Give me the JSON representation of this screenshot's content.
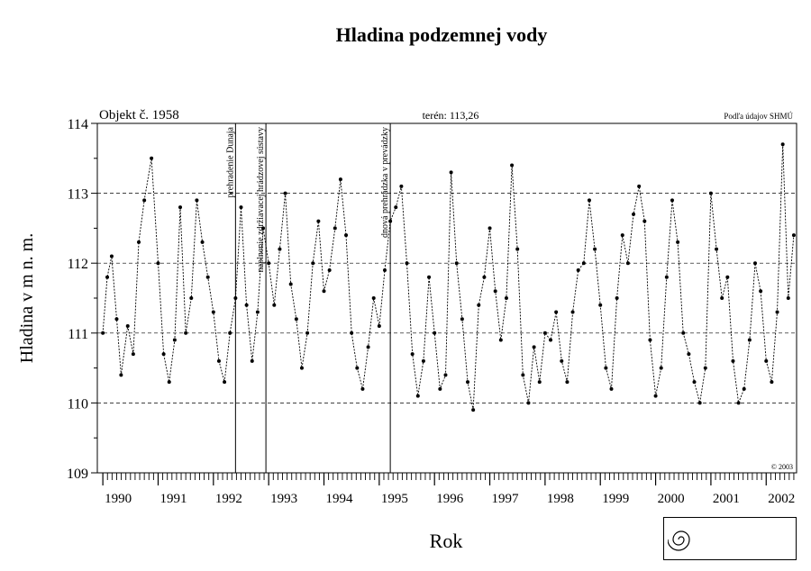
{
  "chart_data": {
    "type": "line",
    "title": "Hladina podzemnej vody",
    "xlabel": "Rok",
    "ylabel": "Hladina v m n. m.",
    "ylim": [
      109,
      114
    ],
    "xlim": [
      1989.9,
      2002.55
    ],
    "y_ticks": [
      109,
      110,
      111,
      112,
      113,
      114
    ],
    "x_tick_labels": [
      "1990",
      "1991",
      "1992",
      "1993",
      "1994",
      "1995",
      "1996",
      "1997",
      "1998",
      "1999",
      "2000",
      "2001",
      "2002"
    ],
    "grid": "dashed horizontal at each integer level",
    "header_left": "Objekt č. 1958",
    "header_center": "terén: 113,26",
    "header_right": "Podľa údajov SHMÚ",
    "copyright": "© 2003",
    "events": [
      {
        "x": 1992.4,
        "label": "prehradenie Dunaja"
      },
      {
        "x": 1992.95,
        "label": "naplnenie zdržiavacej hrádzovej sústavy"
      },
      {
        "x": 1995.2,
        "label": "dnová prehrádzka v prevádzky"
      }
    ],
    "series": [
      {
        "x": [
          1990.0,
          1990.08,
          1990.16,
          1990.25,
          1990.33,
          1990.45,
          1990.55,
          1990.65,
          1990.75,
          1990.88,
          1991.0,
          1991.1,
          1991.2,
          1991.3,
          1991.4,
          1991.5,
          1991.6,
          1991.7,
          1991.8,
          1991.9,
          1992.0,
          1992.1,
          1992.2,
          1992.3,
          1992.4,
          1992.5,
          1992.6,
          1992.7,
          1992.8,
          1992.9,
          1993.0,
          1993.1,
          1993.2,
          1993.3,
          1993.4,
          1993.5,
          1993.6,
          1993.7,
          1993.8,
          1993.9,
          1994.0,
          1994.1,
          1994.2,
          1994.3,
          1994.4,
          1994.5,
          1994.6,
          1994.7,
          1994.8,
          1994.9,
          1995.0,
          1995.1,
          1995.2,
          1995.3,
          1995.4,
          1995.5,
          1995.6,
          1995.7,
          1995.8,
          1995.9,
          1996.0,
          1996.1,
          1996.2,
          1996.3,
          1996.4,
          1996.5,
          1996.6,
          1996.7,
          1996.8,
          1996.9,
          1997.0,
          1997.1,
          1997.2,
          1997.3,
          1997.4,
          1997.5,
          1997.6,
          1997.7,
          1997.8,
          1997.9,
          1998.0,
          1998.1,
          1998.2,
          1998.3,
          1998.4,
          1998.5,
          1998.6,
          1998.7,
          1998.8,
          1998.9,
          1999.0,
          1999.1,
          1999.2,
          1999.3,
          1999.4,
          1999.5,
          1999.6,
          1999.7,
          1999.8,
          1999.9,
          2000.0,
          2000.1,
          2000.2,
          2000.3,
          2000.4,
          2000.5,
          2000.6,
          2000.7,
          2000.8,
          2000.9,
          2001.0,
          2001.1,
          2001.2,
          2001.3,
          2001.4,
          2001.5,
          2001.6,
          2001.7,
          2001.8,
          2001.9,
          2002.0,
          2002.1,
          2002.2,
          2002.3,
          2002.4,
          2002.5
        ],
        "values": [
          111.0,
          111.8,
          112.1,
          111.2,
          110.4,
          111.1,
          110.7,
          112.3,
          112.9,
          113.5,
          112.0,
          110.7,
          110.3,
          110.9,
          112.8,
          111.0,
          111.5,
          112.9,
          112.3,
          111.8,
          111.3,
          110.6,
          110.3,
          111.0,
          111.5,
          112.8,
          111.4,
          110.6,
          111.3,
          112.5,
          112.0,
          111.4,
          112.2,
          113.0,
          111.7,
          111.2,
          110.5,
          111.0,
          112.0,
          112.6,
          111.6,
          111.9,
          112.5,
          113.2,
          112.4,
          111.0,
          110.5,
          110.2,
          110.8,
          111.5,
          111.1,
          111.9,
          112.6,
          112.8,
          113.1,
          112.0,
          110.7,
          110.1,
          110.6,
          111.8,
          111.0,
          110.2,
          110.4,
          113.3,
          112.0,
          111.2,
          110.3,
          109.9,
          111.4,
          111.8,
          112.5,
          111.6,
          110.9,
          111.5,
          113.4,
          112.2,
          110.4,
          110.0,
          110.8,
          110.3,
          111.0,
          110.9,
          111.3,
          110.6,
          110.3,
          111.3,
          111.9,
          112.0,
          112.9,
          112.2,
          111.4,
          110.5,
          110.2,
          111.5,
          112.4,
          112.0,
          112.7,
          113.1,
          112.6,
          110.9,
          110.1,
          110.5,
          111.8,
          112.9,
          112.3,
          111.0,
          110.7,
          110.3,
          110.0,
          110.5,
          113.0,
          112.2,
          111.5,
          111.8,
          110.6,
          110.0,
          110.2,
          110.9,
          112.0,
          111.6,
          110.6,
          110.3,
          111.3,
          113.7,
          111.5,
          112.4
        ]
      }
    ]
  }
}
